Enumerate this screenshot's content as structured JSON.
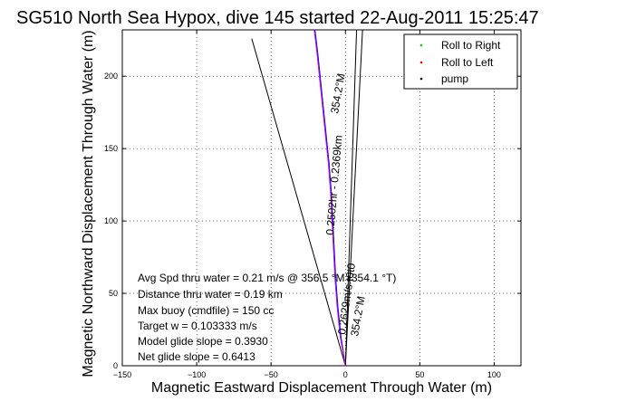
{
  "chart_data": {
    "type": "line",
    "title": "SG510 North Sea Hypox, dive 145 started 22-Aug-2011 15:25:47",
    "xlabel": "Magnetic Eastward Displacement Through Water (m)",
    "ylabel": "Magnetic Northward Displacement Through Water (m)",
    "xlim": [
      -150,
      118
    ],
    "ylim": [
      0,
      232
    ],
    "xticks": [
      -150,
      -100,
      -50,
      0,
      50,
      100
    ],
    "yticks": [
      0,
      50,
      100,
      150,
      200
    ],
    "grid": true,
    "legend_position": "top-right",
    "legend": [
      {
        "label": "Roll to Right",
        "color": "#00cc00",
        "marker": "point"
      },
      {
        "label": "Roll to Left",
        "color": "#ff0000",
        "marker": "point"
      },
      {
        "label": "pump",
        "color": "#000000",
        "marker": "point"
      }
    ],
    "series": [
      {
        "color": "#0000ff",
        "x": [
          0,
          -3,
          -5,
          -6.5,
          -7.5,
          -8.5,
          -9.5,
          -11,
          -13,
          -15,
          -17,
          -18.5,
          -20,
          -20.5
        ],
        "y": [
          0,
          20,
          40,
          60,
          80,
          100,
          120,
          140,
          160,
          180,
          200,
          215,
          228,
          232
        ]
      },
      {
        "color": "#cc00cc",
        "x": [
          0,
          -3.5,
          -5.5,
          -7,
          -8,
          -9,
          -10,
          -11.5,
          -13.5,
          -15.5,
          -17.5,
          -19,
          -20.5,
          -21
        ],
        "y": [
          0,
          20,
          40,
          60,
          80,
          100,
          120,
          140,
          160,
          180,
          200,
          215,
          228,
          232
        ]
      }
    ],
    "reference_lines": [
      {
        "color": "#000000",
        "x": [
          0,
          -63
        ],
        "y": [
          0,
          226
        ]
      },
      {
        "color": "#000000",
        "x": [
          0,
          7.5
        ],
        "y": [
          0,
          232
        ]
      },
      {
        "color": "#000000",
        "x": [
          0,
          11.5
        ],
        "y": [
          0,
          232
        ]
      }
    ],
    "annotations": [
      "Avg Spd thru water =  0.21 m/s @ 356.5   °M (354.1 °T)",
      "Distance thru water =  0.19 km",
      "Max buoy (cmdfile) = 150 cc",
      "Target w = 0.103333 m/s",
      "Model glide slope = 0.3930",
      "Net glide slope = 0.6413"
    ],
    "rotated_labels": [
      "354.2°M",
      "0.2502hr - 0.2369km",
      "0.2629m/s t0t0",
      "354.2°M"
    ]
  }
}
